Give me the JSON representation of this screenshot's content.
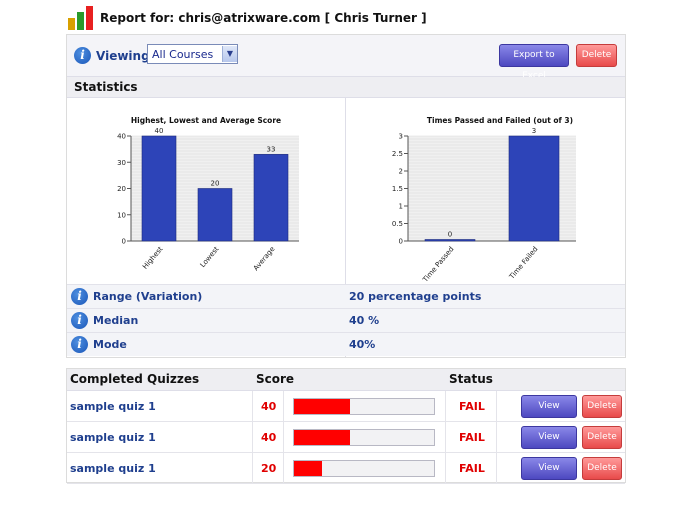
{
  "header": {
    "title": "Report for: chris@atrixware.com [ Chris Turner ]",
    "logo_colors": [
      "#d8a000",
      "#2a9a2a",
      "#e82020"
    ]
  },
  "toolbar": {
    "viewing_label": "Viewing",
    "course_select": {
      "selected": "All Courses"
    },
    "export_label": "Export to Excel",
    "delete_label": "Delete"
  },
  "statistics": {
    "heading": "Statistics",
    "rows": [
      {
        "label": "Range (Variation)",
        "value": "20 percentage points"
      },
      {
        "label": "Median",
        "value": "40 %"
      },
      {
        "label": "Mode",
        "value": "40%"
      }
    ]
  },
  "chart_data": [
    {
      "type": "bar",
      "title": "Highest, Lowest and Average Score",
      "categories": [
        "Highest",
        "Lowest",
        "Average"
      ],
      "values": [
        40,
        20,
        33
      ],
      "ylim": [
        0,
        40
      ],
      "yticks": [
        0,
        10,
        20,
        30,
        40
      ],
      "grid": true,
      "bar_color": "#2d44b8"
    },
    {
      "type": "bar",
      "title": "Times Passed and Failed (out of 3)",
      "categories": [
        "Time Passed",
        "Time Failed"
      ],
      "values": [
        0,
        3
      ],
      "ylim": [
        0,
        3
      ],
      "yticks": [
        0,
        0.5,
        1,
        1.5,
        2,
        2.5,
        3
      ],
      "grid": true,
      "bar_color": "#2d44b8"
    }
  ],
  "quizzes": {
    "headers": {
      "name": "Completed Quizzes",
      "score": "Score",
      "status": "Status"
    },
    "view_label": "View",
    "delete_label": "Delete",
    "rows": [
      {
        "name": "sample quiz 1",
        "score": "40",
        "percent": 40,
        "status": "FAIL"
      },
      {
        "name": "sample quiz 1",
        "score": "40",
        "percent": 40,
        "status": "FAIL"
      },
      {
        "name": "sample quiz 1",
        "score": "20",
        "percent": 20,
        "status": "FAIL"
      }
    ]
  }
}
